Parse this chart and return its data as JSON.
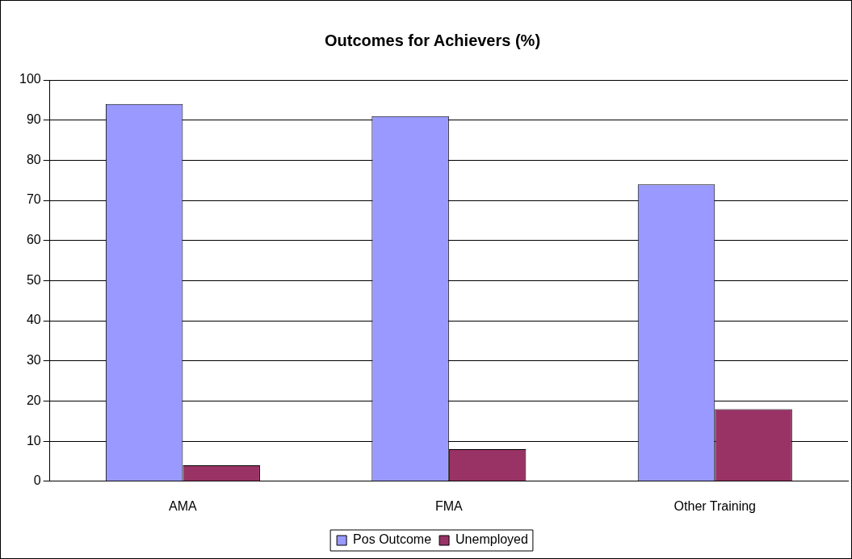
{
  "chart_data": {
    "type": "bar",
    "title": "Outcomes for Achievers (%)",
    "categories": [
      "AMA",
      "FMA",
      "Other Training"
    ],
    "series": [
      {
        "name": "Pos Outcome",
        "color": "#9999ff",
        "values": [
          94,
          91,
          74
        ]
      },
      {
        "name": "Unemployed",
        "color": "#993366",
        "values": [
          4,
          8,
          18
        ]
      }
    ],
    "ylim": [
      0,
      100
    ],
    "yticks": [
      0,
      10,
      20,
      30,
      40,
      50,
      60,
      70,
      80,
      90,
      100
    ],
    "grid": "y",
    "legend": "bottom"
  }
}
